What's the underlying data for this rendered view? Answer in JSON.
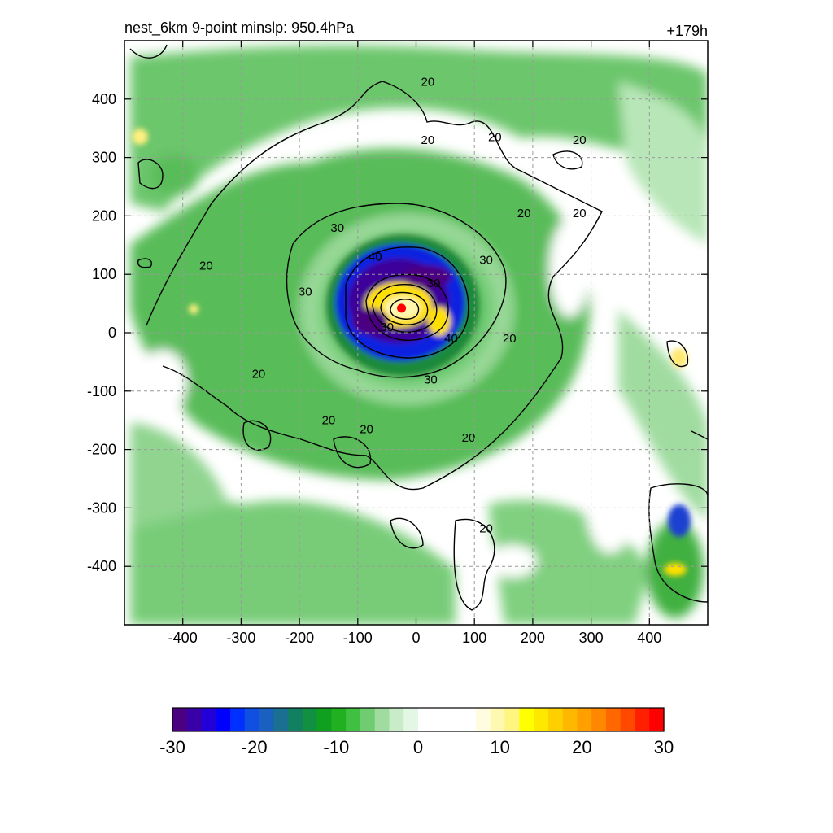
{
  "chart_data": {
    "type": "heatmap",
    "title_left": "nest_6km  9-point minslp: 950.4hPa",
    "title_right": "+179h",
    "xlabel": "",
    "ylabel": "",
    "xlim": [
      -500,
      500
    ],
    "ylim": [
      -500,
      500
    ],
    "x_ticks": [
      -400,
      -300,
      -200,
      -100,
      0,
      100,
      200,
      300,
      400
    ],
    "y_ticks": [
      400,
      300,
      200,
      100,
      0,
      -100,
      -200,
      -300,
      -400
    ],
    "grid": true,
    "grid_style": "dashed",
    "colorbar": {
      "min": -30,
      "max": 30,
      "ticks": [
        -30,
        -20,
        -10,
        0,
        10,
        20,
        30
      ],
      "colors": [
        "#4b0082",
        "#3a00a8",
        "#2400d8",
        "#0000ff",
        "#0030ff",
        "#1050e0",
        "#1a60c0",
        "#1a7090",
        "#108060",
        "#109040",
        "#10a020",
        "#20b020",
        "#40c040",
        "#70cc70",
        "#a0dca0",
        "#c8ecc8",
        "#e4f6e4",
        "#ffffff",
        "#ffffff",
        "#ffffff",
        "#ffffff",
        "#fffce0",
        "#fff8b0",
        "#fff580",
        "#ffff00",
        "#ffe800",
        "#ffd000",
        "#ffb800",
        "#ffa000",
        "#ff8800",
        "#ff6800",
        "#ff4800",
        "#ff2000",
        "#ff0000"
      ]
    },
    "contour_levels": [
      20,
      30,
      40
    ],
    "contour_labels": [
      {
        "text": "20",
        "x": 20,
        "y": 430
      },
      {
        "text": "20",
        "x": 20,
        "y": 330
      },
      {
        "text": "20",
        "x": 280,
        "y": 330
      },
      {
        "text": "20",
        "x": 280,
        "y": 205
      },
      {
        "text": "20",
        "x": 135,
        "y": 335
      },
      {
        "text": "20",
        "x": 185,
        "y": 205
      },
      {
        "text": "20",
        "x": -360,
        "y": 115
      },
      {
        "text": "20",
        "x": 160,
        "y": -10
      },
      {
        "text": "20",
        "x": -270,
        "y": -70
      },
      {
        "text": "20",
        "x": -150,
        "y": -150
      },
      {
        "text": "20",
        "x": -85,
        "y": -165
      },
      {
        "text": "20",
        "x": 90,
        "y": -180
      },
      {
        "text": "20",
        "x": 120,
        "y": -335
      },
      {
        "text": "30",
        "x": -135,
        "y": 180
      },
      {
        "text": "30",
        "x": -190,
        "y": 70
      },
      {
        "text": "30",
        "x": 120,
        "y": 125
      },
      {
        "text": "30",
        "x": 25,
        "y": -80
      },
      {
        "text": "30",
        "x": 30,
        "y": 85
      },
      {
        "text": "30",
        "x": -50,
        "y": 10
      },
      {
        "text": "40",
        "x": -70,
        "y": 130
      },
      {
        "text": "40",
        "x": 60,
        "y": -10
      }
    ],
    "center_marker": {
      "x": -25,
      "y": 42,
      "color": "#ff0000"
    }
  }
}
